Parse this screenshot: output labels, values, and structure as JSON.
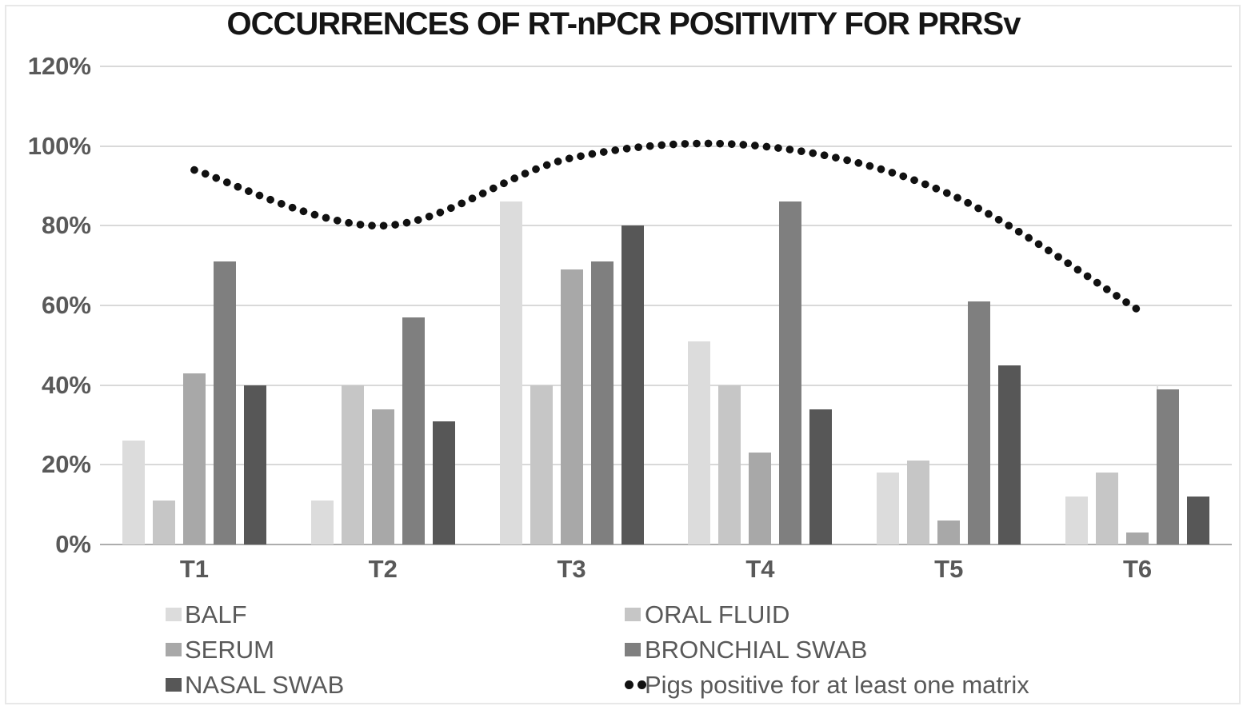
{
  "title": "OCCURRENCES OF RT-nPCR POSITIVITY FOR PRRSv",
  "colors": {
    "background": "#ffffff",
    "gridline": "#d9d9d9",
    "axis_line": "#adadad",
    "axis_text": "#595959",
    "title_text": "#151515",
    "line_dots": "#111111"
  },
  "chart_data": {
    "type": "bar",
    "title": "OCCURRENCES OF RT-nPCR POSITIVITY FOR PRRSv",
    "categories": [
      "T1",
      "T2",
      "T3",
      "T4",
      "T5",
      "T6"
    ],
    "series": [
      {
        "name": "BALF",
        "type": "bar",
        "color": "#dcdcdc",
        "values": [
          26,
          11,
          86,
          51,
          18,
          12
        ]
      },
      {
        "name": "ORAL FLUID",
        "type": "bar",
        "color": "#c6c6c6",
        "values": [
          11,
          40,
          40,
          40,
          21,
          18
        ]
      },
      {
        "name": "SERUM",
        "type": "bar",
        "color": "#a8a8a8",
        "values": [
          43,
          34,
          69,
          23,
          6,
          3
        ]
      },
      {
        "name": "BRONCHIAL SWAB",
        "type": "bar",
        "color": "#7f7f7f",
        "values": [
          71,
          57,
          71,
          86,
          61,
          39
        ]
      },
      {
        "name": "NASAL SWAB",
        "type": "bar",
        "color": "#575757",
        "values": [
          40,
          31,
          80,
          34,
          45,
          12
        ]
      },
      {
        "name": "Pigs positive for at least one matrix",
        "type": "line-dotted",
        "color": "#111111",
        "values": [
          94,
          80,
          97,
          100,
          88,
          59
        ]
      }
    ],
    "xlabel": "",
    "ylabel": "",
    "ylim": [
      0,
      120
    ],
    "y_ticks": [
      0,
      20,
      40,
      60,
      80,
      100,
      120
    ],
    "y_tick_labels": [
      "0%",
      "20%",
      "40%",
      "60%",
      "80%",
      "100%",
      "120%"
    ],
    "grid": "horizontal",
    "legend_position": "bottom"
  },
  "legend": {
    "items": [
      {
        "label": "BALF",
        "marker": "square",
        "color": "#dcdcdc",
        "col": 0,
        "row": 0
      },
      {
        "label": "ORAL FLUID",
        "marker": "square",
        "color": "#c6c6c6",
        "col": 1,
        "row": 0
      },
      {
        "label": "SERUM",
        "marker": "square",
        "color": "#a8a8a8",
        "col": 0,
        "row": 1
      },
      {
        "label": "BRONCHIAL SWAB",
        "marker": "square",
        "color": "#7f7f7f",
        "col": 1,
        "row": 1
      },
      {
        "label": "NASAL SWAB",
        "marker": "square",
        "color": "#575757",
        "col": 0,
        "row": 2
      },
      {
        "label": "Pigs positive for at least one matrix",
        "marker": "dots",
        "color": "#111111",
        "col": 1,
        "row": 2
      }
    ]
  }
}
